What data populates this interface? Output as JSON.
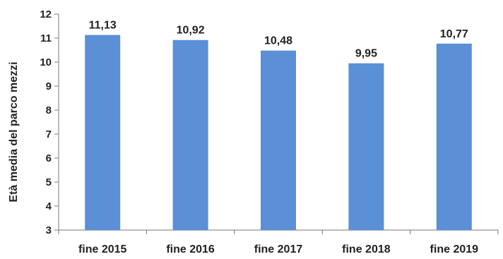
{
  "chart_data": {
    "type": "bar",
    "title": "",
    "xlabel": "",
    "ylabel": "Età media del parco mezzi",
    "categories": [
      "fine 2015",
      "fine 2016",
      "fine 2017",
      "fine 2018",
      "fine 2019"
    ],
    "values": [
      11.13,
      10.92,
      10.48,
      9.95,
      10.77
    ],
    "value_labels": [
      "11,13",
      "10,92",
      "10,48",
      "9,95",
      "10,77"
    ],
    "ylim": [
      3,
      12
    ],
    "yticks": [
      "3",
      "4",
      "5",
      "6",
      "7",
      "8",
      "9",
      "10",
      "11",
      "12"
    ],
    "grid": false,
    "legend": "none",
    "bar_color": "#5b8fd6"
  }
}
